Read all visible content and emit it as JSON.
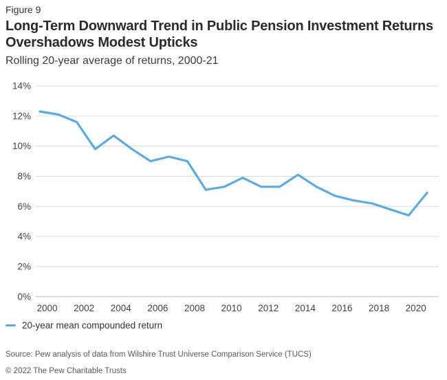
{
  "figure_label": "Figure 9",
  "title_lines": [
    "Long-Term Downward Trend in Public Pension Investment Returns",
    "Overshadows Modest Upticks"
  ],
  "subtitle": "Rolling 20-year average of returns, 2000-21",
  "legend": {
    "series_label": "20-year mean compounded return"
  },
  "footer": {
    "source": "Source: Pew analysis of data from Wilshire Trust Universe Comparison Service (TUCS)",
    "copyright": "© 2022 The Pew Charitable Trusts"
  },
  "colors": {
    "line": "#5fa9dc",
    "grid": "#d9d9d9",
    "axis_line": "#bfbfbf",
    "axis_text": "#404040",
    "title_text": "#2a2a2a",
    "footer_text": "#58595b"
  },
  "chart_data": {
    "type": "line",
    "title": "Long-Term Downward Trend in Public Pension Investment Returns Overshadows Modest Upticks",
    "subtitle": "Rolling 20-year average of returns, 2000-21",
    "x": [
      2000,
      2001,
      2002,
      2003,
      2004,
      2005,
      2006,
      2007,
      2008,
      2009,
      2010,
      2011,
      2012,
      2013,
      2014,
      2015,
      2016,
      2017,
      2018,
      2019,
      2020,
      2021
    ],
    "series": [
      {
        "name": "20-year mean compounded return",
        "values": [
          12.3,
          12.1,
          11.6,
          9.8,
          10.7,
          9.8,
          9.0,
          9.3,
          9.0,
          7.1,
          7.3,
          7.9,
          7.3,
          7.3,
          8.1,
          7.3,
          6.7,
          6.4,
          6.2,
          5.8,
          5.4,
          6.9
        ]
      }
    ],
    "ylim": [
      0,
      14
    ],
    "y_ticks": [
      0,
      2,
      4,
      6,
      8,
      10,
      12,
      14
    ],
    "y_tick_suffix": "%",
    "x_ticks": [
      2000,
      2002,
      2004,
      2006,
      2008,
      2010,
      2012,
      2014,
      2016,
      2018,
      2020
    ],
    "grid": true,
    "legend_position": "bottom-left"
  }
}
